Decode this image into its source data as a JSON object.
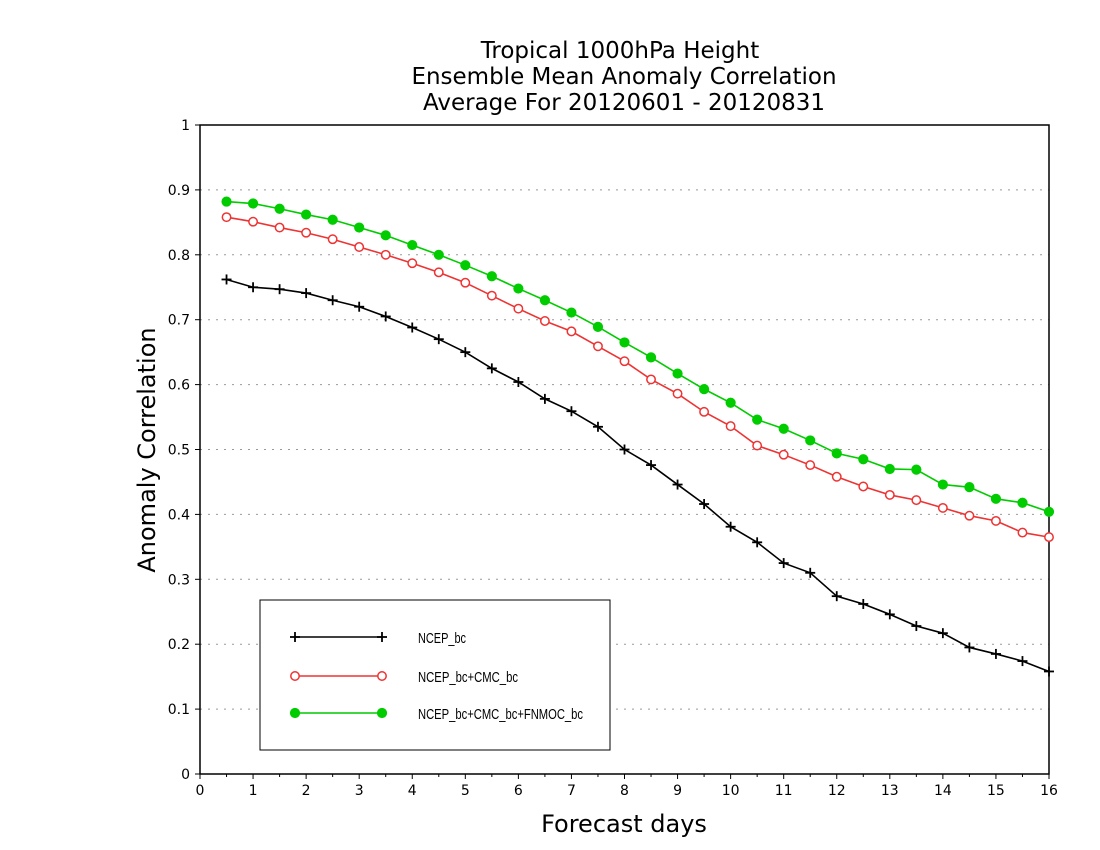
{
  "chart_data": {
    "type": "line",
    "title_lines": [
      "Tropical 1000hPa Height",
      "Ensemble Mean Anomaly Correlation",
      "Average For 20120601 - 20120831"
    ],
    "xlabel": "Forecast days",
    "ylabel": "Anomaly Correlation",
    "xlim": [
      0,
      16
    ],
    "ylim": [
      0,
      1
    ],
    "x_ticks": [
      "0",
      "1",
      "2",
      "3",
      "4",
      "5",
      "6",
      "7",
      "8",
      "9",
      "10",
      "11",
      "12",
      "13",
      "14",
      "15",
      "16"
    ],
    "y_ticks": [
      "0",
      "0.1",
      "0.2",
      "0.3",
      "0.4",
      "0.5",
      "0.6",
      "0.7",
      "0.8",
      "0.9",
      "1"
    ],
    "grid": "horizontal dotted",
    "legend_position": "bottom-left",
    "x": [
      0.5,
      1,
      1.5,
      2,
      2.5,
      3,
      3.5,
      4,
      4.5,
      5,
      5.5,
      6,
      6.5,
      7,
      7.5,
      8,
      8.5,
      9,
      9.5,
      10,
      10.5,
      11,
      11.5,
      12,
      12.5,
      13,
      13.5,
      14,
      14.5,
      15,
      15.5,
      16
    ],
    "series": [
      {
        "name": "NCEP_bc",
        "color": "#000000",
        "marker": "plus",
        "values": [
          0.762,
          0.75,
          0.747,
          0.741,
          0.73,
          0.72,
          0.705,
          0.688,
          0.67,
          0.65,
          0.625,
          0.604,
          0.578,
          0.559,
          0.535,
          0.5,
          0.476,
          0.446,
          0.416,
          0.381,
          0.357,
          0.325,
          0.31,
          0.274,
          0.262,
          0.246,
          0.228,
          0.217,
          0.195,
          0.185,
          0.174,
          0.158
        ]
      },
      {
        "name": "NCEP_bc+CMC_bc",
        "color": "#ee3333",
        "marker": "open-circle",
        "values": [
          0.858,
          0.851,
          0.842,
          0.834,
          0.824,
          0.812,
          0.8,
          0.787,
          0.773,
          0.757,
          0.737,
          0.717,
          0.698,
          0.682,
          0.659,
          0.636,
          0.608,
          0.586,
          0.558,
          0.536,
          0.506,
          0.492,
          0.476,
          0.458,
          0.443,
          0.43,
          0.422,
          0.41,
          0.398,
          0.39,
          0.372,
          0.365
        ]
      },
      {
        "name": "NCEP_bc+CMC_bc+FNMOC_bc",
        "color": "#00cc00",
        "marker": "filled-circle",
        "values": [
          0.882,
          0.879,
          0.871,
          0.862,
          0.854,
          0.842,
          0.83,
          0.815,
          0.8,
          0.784,
          0.767,
          0.748,
          0.73,
          0.711,
          0.689,
          0.665,
          0.642,
          0.617,
          0.593,
          0.572,
          0.546,
          0.532,
          0.514,
          0.494,
          0.485,
          0.47,
          0.469,
          0.446,
          0.442,
          0.424,
          0.418,
          0.404
        ]
      }
    ]
  }
}
